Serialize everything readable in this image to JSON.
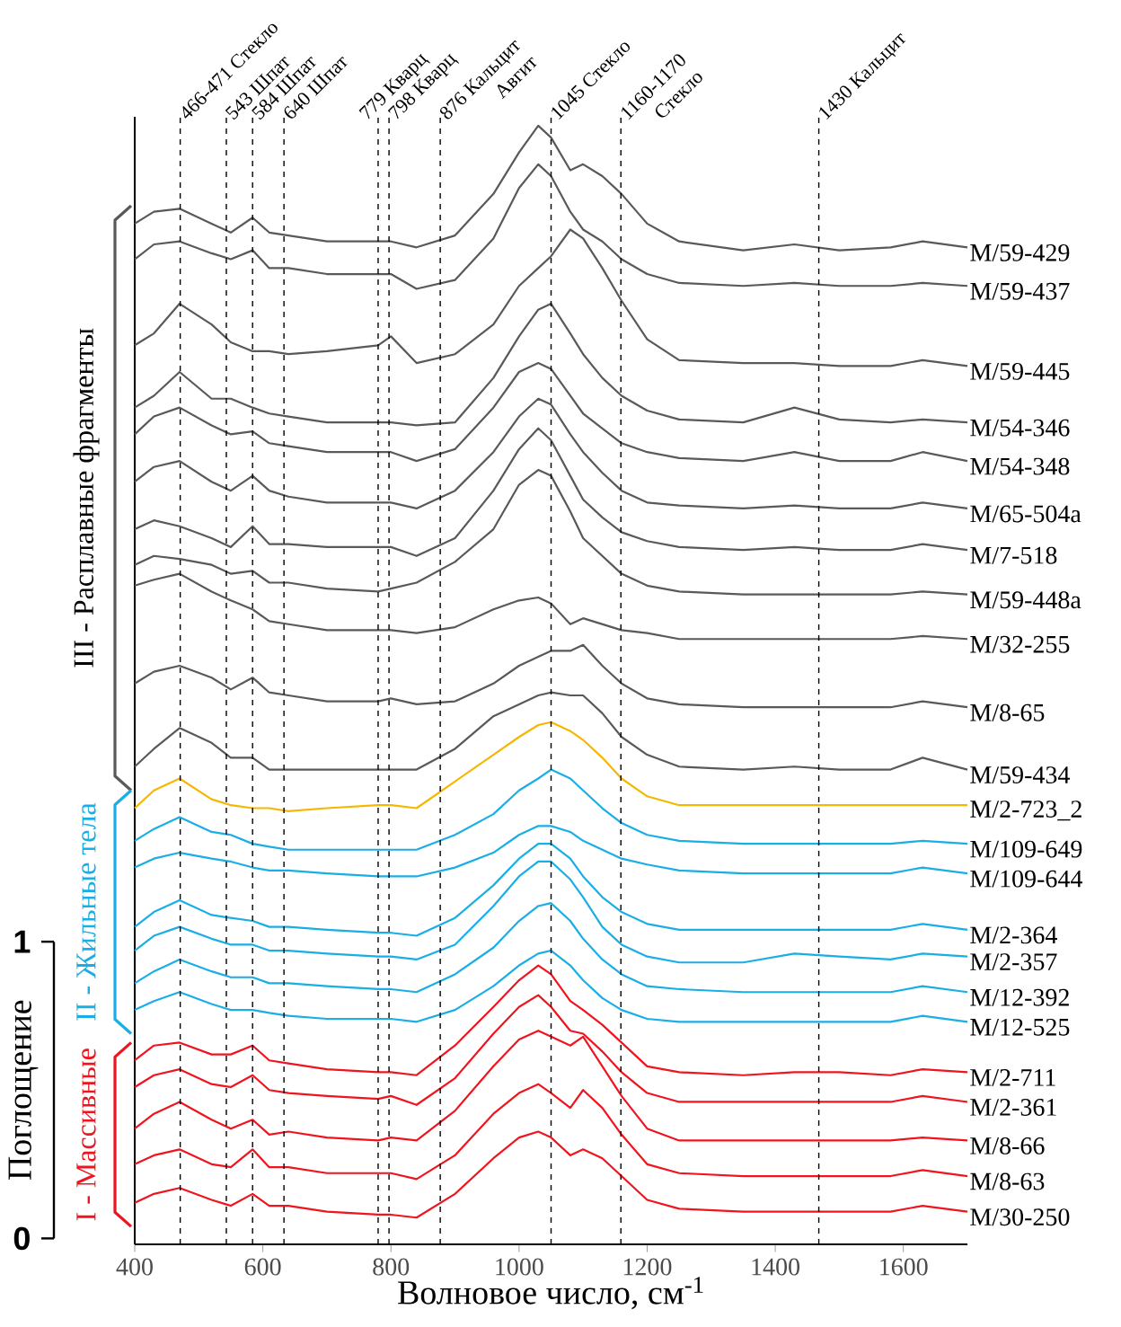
{
  "chart_data": {
    "type": "line",
    "xlabel": "Волновое число, см$^{-1}$",
    "ylabel": "Поглощение",
    "xlim": [
      400,
      1700
    ],
    "xticks": [
      400,
      600,
      800,
      1000,
      1200,
      1400,
      1600
    ],
    "ylim": [
      -0.02,
      3.78
    ],
    "yticks": [
      0,
      1
    ],
    "x": [
      400,
      430,
      470,
      520,
      550,
      584,
      610,
      640,
      700,
      780,
      800,
      840,
      900,
      960,
      1000,
      1030,
      1050,
      1080,
      1100,
      1130,
      1160,
      1200,
      1250,
      1350,
      1430,
      1500,
      1580,
      1630,
      1700
    ],
    "series": [
      {
        "name": "M/59-429",
        "color": "#595959",
        "values": [
          3.42,
          3.46,
          3.47,
          3.42,
          3.39,
          3.44,
          3.39,
          3.38,
          3.36,
          3.36,
          3.36,
          3.34,
          3.38,
          3.52,
          3.66,
          3.75,
          3.71,
          3.6,
          3.62,
          3.58,
          3.52,
          3.42,
          3.36,
          3.33,
          3.35,
          3.33,
          3.34,
          3.36,
          3.34
        ]
      },
      {
        "name": "M/59-437",
        "color": "#595959",
        "values": [
          3.3,
          3.35,
          3.36,
          3.32,
          3.3,
          3.33,
          3.27,
          3.27,
          3.25,
          3.25,
          3.25,
          3.2,
          3.23,
          3.37,
          3.54,
          3.62,
          3.58,
          3.46,
          3.4,
          3.36,
          3.3,
          3.25,
          3.22,
          3.21,
          3.22,
          3.21,
          3.21,
          3.22,
          3.21
        ]
      },
      {
        "name": "M/59-445",
        "color": "#595959",
        "values": [
          3.01,
          3.05,
          3.15,
          3.08,
          3.02,
          2.99,
          2.99,
          2.98,
          2.99,
          3.01,
          3.04,
          2.95,
          2.98,
          3.08,
          3.21,
          3.27,
          3.31,
          3.4,
          3.37,
          3.27,
          3.16,
          3.03,
          2.96,
          2.95,
          2.95,
          2.94,
          2.94,
          2.96,
          2.94
        ]
      },
      {
        "name": "M/54-346",
        "color": "#595959",
        "values": [
          2.8,
          2.84,
          2.92,
          2.83,
          2.83,
          2.8,
          2.78,
          2.77,
          2.75,
          2.75,
          2.75,
          2.74,
          2.75,
          2.9,
          3.04,
          3.13,
          3.15,
          3.05,
          2.98,
          2.9,
          2.84,
          2.79,
          2.76,
          2.75,
          2.8,
          2.76,
          2.75,
          2.76,
          2.75
        ]
      },
      {
        "name": "M/54-348",
        "color": "#595959",
        "values": [
          2.71,
          2.77,
          2.8,
          2.74,
          2.71,
          2.72,
          2.68,
          2.67,
          2.65,
          2.65,
          2.65,
          2.62,
          2.66,
          2.8,
          2.92,
          2.95,
          2.93,
          2.84,
          2.78,
          2.73,
          2.68,
          2.65,
          2.63,
          2.62,
          2.65,
          2.62,
          2.62,
          2.65,
          2.62
        ]
      },
      {
        "name": "M/65-504a",
        "color": "#595959",
        "values": [
          2.55,
          2.6,
          2.62,
          2.55,
          2.52,
          2.57,
          2.52,
          2.5,
          2.48,
          2.48,
          2.48,
          2.46,
          2.52,
          2.65,
          2.77,
          2.83,
          2.81,
          2.71,
          2.65,
          2.58,
          2.52,
          2.48,
          2.47,
          2.46,
          2.47,
          2.46,
          2.46,
          2.48,
          2.46
        ]
      },
      {
        "name": "M/7-518",
        "color": "#595959",
        "values": [
          2.39,
          2.42,
          2.4,
          2.36,
          2.33,
          2.4,
          2.34,
          2.34,
          2.33,
          2.33,
          2.33,
          2.3,
          2.36,
          2.52,
          2.66,
          2.73,
          2.69,
          2.57,
          2.49,
          2.43,
          2.38,
          2.35,
          2.33,
          2.32,
          2.33,
          2.32,
          2.32,
          2.34,
          2.32
        ]
      },
      {
        "name": "M/59-448a",
        "color": "#595959",
        "values": [
          2.27,
          2.3,
          2.29,
          2.27,
          2.24,
          2.25,
          2.21,
          2.21,
          2.19,
          2.18,
          2.19,
          2.21,
          2.28,
          2.39,
          2.54,
          2.59,
          2.57,
          2.45,
          2.36,
          2.3,
          2.24,
          2.2,
          2.18,
          2.17,
          2.17,
          2.17,
          2.17,
          2.18,
          2.17
        ]
      },
      {
        "name": "M/32-255",
        "color": "#595959",
        "values": [
          2.2,
          2.22,
          2.24,
          2.18,
          2.15,
          2.12,
          2.08,
          2.07,
          2.05,
          2.05,
          2.05,
          2.04,
          2.06,
          2.12,
          2.15,
          2.16,
          2.14,
          2.07,
          2.09,
          2.07,
          2.05,
          2.04,
          2.02,
          2.02,
          2.02,
          2.02,
          2.02,
          2.03,
          2.02
        ]
      },
      {
        "name": "M/8-65",
        "color": "#595959",
        "values": [
          1.87,
          1.91,
          1.93,
          1.89,
          1.85,
          1.89,
          1.84,
          1.83,
          1.81,
          1.81,
          1.82,
          1.8,
          1.81,
          1.87,
          1.93,
          1.96,
          1.98,
          1.98,
          2.0,
          1.93,
          1.87,
          1.82,
          1.8,
          1.79,
          1.79,
          1.79,
          1.79,
          1.81,
          1.79
        ]
      },
      {
        "name": "M/59-434",
        "color": "#595959",
        "values": [
          1.59,
          1.65,
          1.72,
          1.67,
          1.62,
          1.62,
          1.58,
          1.58,
          1.58,
          1.58,
          1.58,
          1.58,
          1.65,
          1.76,
          1.8,
          1.83,
          1.84,
          1.83,
          1.83,
          1.77,
          1.69,
          1.63,
          1.59,
          1.58,
          1.59,
          1.58,
          1.58,
          1.62,
          1.58
        ]
      },
      {
        "name": "M/2-723_2",
        "color": "#f5b700",
        "values": [
          1.45,
          1.51,
          1.55,
          1.48,
          1.46,
          1.45,
          1.45,
          1.44,
          1.45,
          1.46,
          1.46,
          1.45,
          1.54,
          1.63,
          1.69,
          1.73,
          1.74,
          1.71,
          1.68,
          1.62,
          1.55,
          1.49,
          1.46,
          1.46,
          1.46,
          1.46,
          1.46,
          1.46,
          1.46
        ]
      },
      {
        "name": "M/109-649",
        "color": "#1aaee6",
        "values": [
          1.34,
          1.38,
          1.42,
          1.37,
          1.36,
          1.33,
          1.32,
          1.31,
          1.31,
          1.31,
          1.31,
          1.31,
          1.36,
          1.43,
          1.51,
          1.55,
          1.58,
          1.55,
          1.51,
          1.45,
          1.4,
          1.36,
          1.34,
          1.33,
          1.33,
          1.33,
          1.33,
          1.34,
          1.33
        ]
      },
      {
        "name": "M/109-644",
        "color": "#1aaee6",
        "values": [
          1.25,
          1.28,
          1.3,
          1.28,
          1.27,
          1.25,
          1.24,
          1.24,
          1.23,
          1.22,
          1.22,
          1.22,
          1.25,
          1.3,
          1.36,
          1.39,
          1.39,
          1.37,
          1.34,
          1.31,
          1.28,
          1.26,
          1.24,
          1.23,
          1.23,
          1.23,
          1.23,
          1.25,
          1.23
        ]
      },
      {
        "name": "M/2-364",
        "color": "#1aaee6",
        "values": [
          1.05,
          1.1,
          1.14,
          1.09,
          1.08,
          1.07,
          1.05,
          1.05,
          1.04,
          1.03,
          1.03,
          1.02,
          1.08,
          1.19,
          1.28,
          1.33,
          1.33,
          1.28,
          1.22,
          1.15,
          1.1,
          1.06,
          1.04,
          1.04,
          1.04,
          1.04,
          1.04,
          1.06,
          1.04
        ]
      },
      {
        "name": "M/2-357",
        "color": "#1aaee6",
        "values": [
          0.97,
          1.02,
          1.05,
          1.01,
          0.99,
          0.99,
          0.97,
          0.97,
          0.96,
          0.95,
          0.95,
          0.94,
          0.99,
          1.12,
          1.22,
          1.27,
          1.27,
          1.21,
          1.15,
          1.05,
          0.99,
          0.95,
          0.93,
          0.93,
          0.96,
          0.95,
          0.94,
          0.96,
          0.95
        ]
      },
      {
        "name": "M/12-392",
        "color": "#1aaee6",
        "values": [
          0.86,
          0.9,
          0.94,
          0.9,
          0.88,
          0.88,
          0.86,
          0.86,
          0.85,
          0.84,
          0.84,
          0.83,
          0.89,
          0.98,
          1.07,
          1.12,
          1.13,
          1.07,
          1.01,
          0.94,
          0.89,
          0.85,
          0.84,
          0.83,
          0.83,
          0.83,
          0.83,
          0.85,
          0.83
        ]
      },
      {
        "name": "M/12-525",
        "color": "#1aaee6",
        "values": [
          0.77,
          0.8,
          0.83,
          0.79,
          0.77,
          0.77,
          0.76,
          0.75,
          0.74,
          0.74,
          0.74,
          0.73,
          0.77,
          0.85,
          0.92,
          0.96,
          0.97,
          0.92,
          0.87,
          0.81,
          0.77,
          0.74,
          0.73,
          0.73,
          0.73,
          0.73,
          0.73,
          0.75,
          0.73
        ]
      },
      {
        "name": "M/2-711",
        "color": "#f0141e",
        "values": [
          0.6,
          0.65,
          0.66,
          0.62,
          0.62,
          0.65,
          0.6,
          0.59,
          0.57,
          0.56,
          0.56,
          0.55,
          0.65,
          0.78,
          0.87,
          0.92,
          0.89,
          0.8,
          0.77,
          0.72,
          0.66,
          0.58,
          0.56,
          0.55,
          0.56,
          0.56,
          0.55,
          0.57,
          0.56
        ]
      },
      {
        "name": "M/2-361",
        "color": "#f0141e",
        "values": [
          0.51,
          0.55,
          0.57,
          0.52,
          0.51,
          0.55,
          0.5,
          0.49,
          0.48,
          0.47,
          0.48,
          0.45,
          0.54,
          0.69,
          0.78,
          0.82,
          0.78,
          0.7,
          0.69,
          0.63,
          0.56,
          0.49,
          0.46,
          0.46,
          0.46,
          0.46,
          0.46,
          0.48,
          0.46
        ]
      },
      {
        "name": "M/8-66",
        "color": "#f0141e",
        "values": [
          0.37,
          0.42,
          0.46,
          0.4,
          0.37,
          0.4,
          0.35,
          0.36,
          0.34,
          0.33,
          0.34,
          0.33,
          0.43,
          0.58,
          0.67,
          0.7,
          0.68,
          0.65,
          0.68,
          0.58,
          0.48,
          0.37,
          0.33,
          0.33,
          0.33,
          0.33,
          0.33,
          0.34,
          0.33
        ]
      },
      {
        "name": "M/8-63",
        "color": "#f0141e",
        "values": [
          0.25,
          0.28,
          0.3,
          0.25,
          0.24,
          0.3,
          0.24,
          0.24,
          0.22,
          0.22,
          0.22,
          0.2,
          0.28,
          0.42,
          0.49,
          0.52,
          0.49,
          0.44,
          0.5,
          0.44,
          0.35,
          0.25,
          0.22,
          0.21,
          0.21,
          0.21,
          0.21,
          0.23,
          0.21
        ]
      },
      {
        "name": "M/30-250",
        "color": "#f0141e",
        "values": [
          0.12,
          0.15,
          0.17,
          0.13,
          0.11,
          0.15,
          0.11,
          0.11,
          0.09,
          0.08,
          0.08,
          0.07,
          0.15,
          0.27,
          0.34,
          0.36,
          0.34,
          0.28,
          0.3,
          0.27,
          0.21,
          0.13,
          0.1,
          0.09,
          0.09,
          0.09,
          0.09,
          0.11,
          0.09
        ]
      }
    ],
    "ref_lines": [
      {
        "axis": "x",
        "value": 471,
        "label": "466-471 Стекло",
        "line_style": "dashed"
      },
      {
        "axis": "x",
        "value": 543,
        "label": "543 Шпат",
        "line_style": "dashed"
      },
      {
        "axis": "x",
        "value": 584,
        "label": "584 Шпат",
        "line_style": "dashed"
      },
      {
        "axis": "x",
        "value": 633,
        "label": "640 Шпат",
        "line_style": "dashed"
      },
      {
        "axis": "x",
        "value": 780,
        "label": "779 Кварц",
        "line_style": "dashed"
      },
      {
        "axis": "x",
        "value": 797,
        "label": "798 Кварц",
        "line_style": "dashed"
      },
      {
        "axis": "x",
        "value": 877,
        "label": "876 Кальцит\nАвгит",
        "line_style": "dashed"
      },
      {
        "axis": "x",
        "value": 1050,
        "label": "1045 Стекло",
        "line_style": "dashed"
      },
      {
        "axis": "x",
        "value": 1159,
        "label": "1160-1170\nСтекло",
        "line_style": "dashed"
      },
      {
        "axis": "x",
        "value": 1468,
        "label": "1430 Кальцит",
        "line_style": "dashed"
      }
    ],
    "annotations": [
      "III - Расплавные фрагменты",
      "II - Жильные тела",
      "I - Массивные"
    ]
  }
}
